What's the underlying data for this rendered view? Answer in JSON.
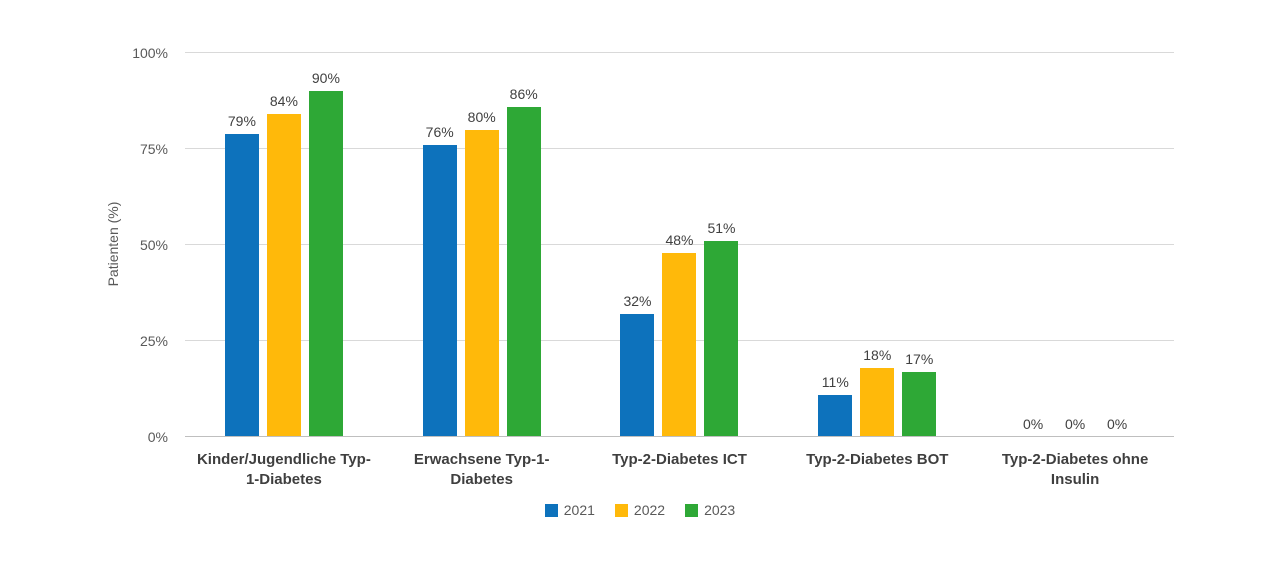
{
  "chart_data": {
    "type": "bar",
    "title": "",
    "ylabel": "Patienten (%)",
    "xlabel": "",
    "ylim": [
      0,
      100
    ],
    "grid": true,
    "legend_position": "bottom-center",
    "value_suffix": "%",
    "y_ticks": [
      {
        "value": 0,
        "label": "0%"
      },
      {
        "value": 25,
        "label": "25%"
      },
      {
        "value": 50,
        "label": "50%"
      },
      {
        "value": 75,
        "label": "75%"
      },
      {
        "value": 100,
        "label": "100%"
      }
    ],
    "categories": [
      "Kinder/Jugendliche Typ-1-Diabetes",
      "Erwachsene Typ-1-Diabetes",
      "Typ-2-Diabetes ICT",
      "Typ-2-Diabetes BOT",
      "Typ-2-Diabetes ohne Insulin"
    ],
    "series": [
      {
        "name": "2021",
        "color": "#0d72bc",
        "values": [
          79,
          76,
          32,
          11,
          0
        ]
      },
      {
        "name": "2022",
        "color": "#ffb90a",
        "values": [
          84,
          80,
          48,
          18,
          0
        ]
      },
      {
        "name": "2023",
        "color": "#2ea836",
        "values": [
          90,
          86,
          51,
          17,
          0
        ]
      }
    ]
  },
  "colors": {
    "background": "#ffffff",
    "gridline": "#d9d9d9",
    "axis_line": "#bfbfbf",
    "tick_text": "#595959",
    "data_label_text": "#404040",
    "category_text": "#3f3f3f"
  }
}
